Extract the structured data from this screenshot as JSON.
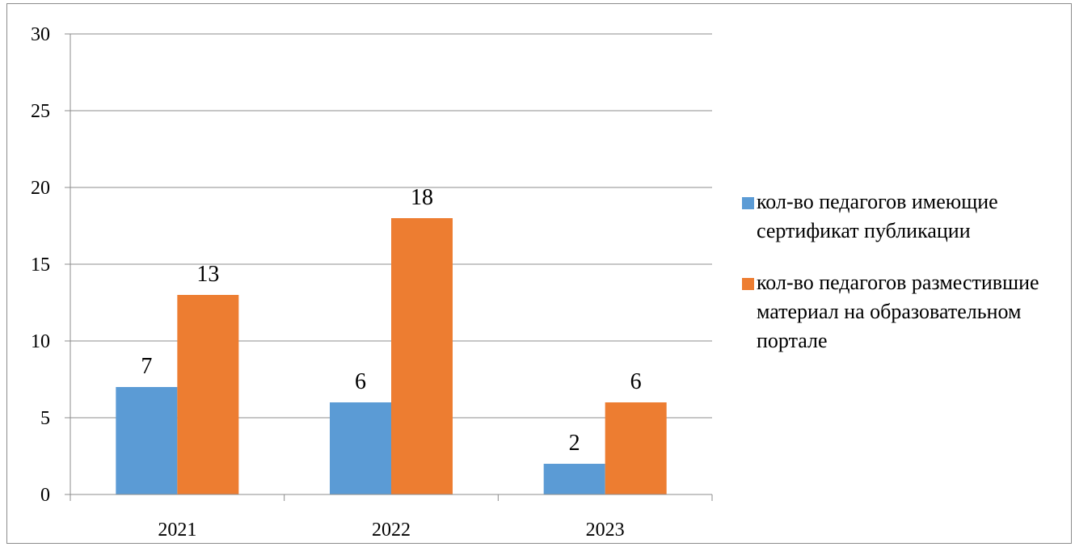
{
  "chart_data": {
    "type": "bar",
    "categories": [
      "2021",
      "2022",
      "2023"
    ],
    "series": [
      {
        "name": "кол-во педагогов имеющие сертификат публикации",
        "color": "#5b9bd5",
        "values": [
          7,
          6,
          2
        ]
      },
      {
        "name": "кол-во педагогов разместившие материал на образовательном портале",
        "color": "#ed7d31",
        "values": [
          13,
          18,
          6
        ]
      }
    ],
    "ylim": [
      0,
      30
    ],
    "yticks": [
      0,
      5,
      10,
      15,
      20,
      25,
      30
    ],
    "grid": true,
    "legend_position": "right",
    "data_labels": true
  }
}
